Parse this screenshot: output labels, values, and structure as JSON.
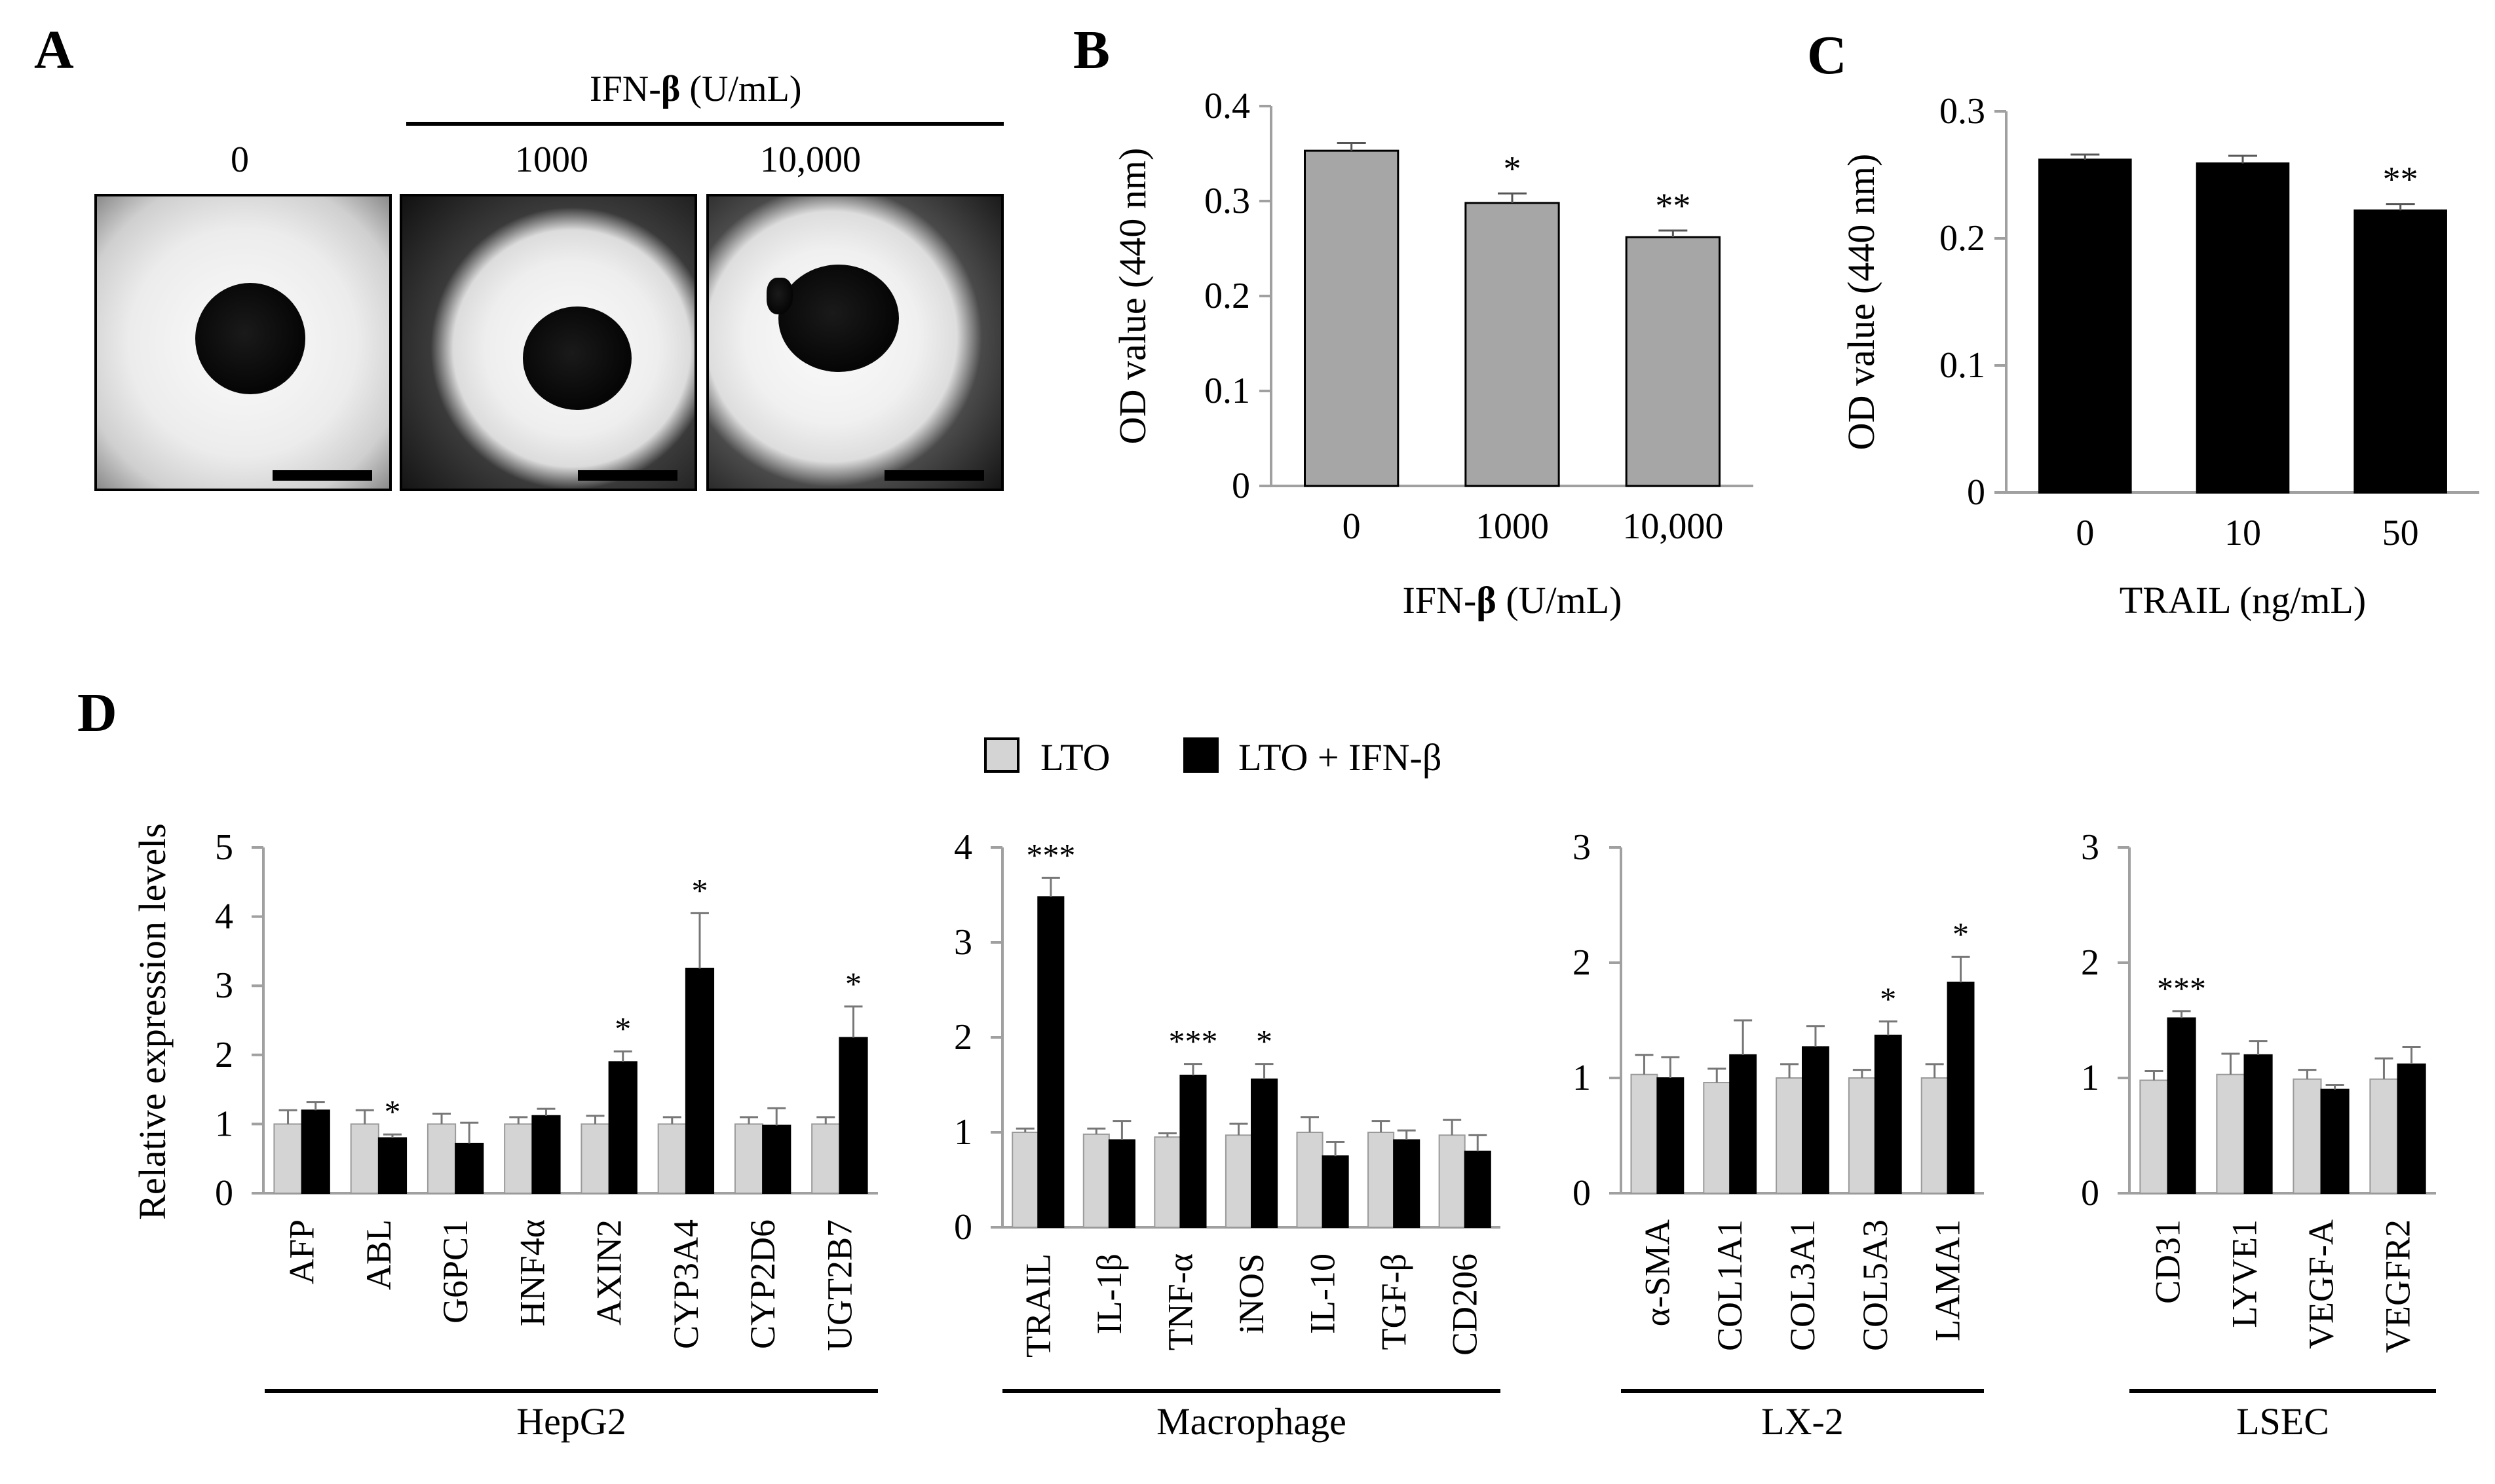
{
  "panel_letters": {
    "a": "A",
    "b": "B",
    "c": "C",
    "d": "D"
  },
  "panel_a": {
    "header": "IFN-",
    "header_beta": "β",
    "header_unit": " (U/mL)",
    "labels": [
      "0",
      "1000",
      "10,000"
    ]
  },
  "legend": [
    "LTO",
    "LTO + IFN-β"
  ],
  "colors": {
    "lto": "#d4d4d4",
    "ifn": "#000000",
    "panel_b_bar": "#a6a6a6",
    "panel_c_bar": "#000000",
    "axis": "#a0a0a0"
  },
  "chart_data": [
    {
      "id": "B",
      "type": "bar",
      "categories": [
        "0",
        "1000",
        "10,000"
      ],
      "values": [
        0.353,
        0.298,
        0.262
      ],
      "errors": [
        0.008,
        0.01,
        0.007
      ],
      "significance": [
        "",
        "*",
        "**"
      ],
      "ylabel": "OD value (440 nm)",
      "xlabel_main": "IFN-",
      "xlabel_beta": "β",
      "xlabel_unit": " (U/mL)",
      "ylim": [
        0,
        0.4
      ],
      "yticks": [
        "0",
        "0.1",
        "0.2",
        "0.3",
        "0.4"
      ]
    },
    {
      "id": "C",
      "type": "bar",
      "categories": [
        "0",
        "10",
        "50"
      ],
      "values": [
        0.262,
        0.259,
        0.222
      ],
      "errors": [
        0.004,
        0.006,
        0.005
      ],
      "significance": [
        "",
        "",
        "**"
      ],
      "ylabel": "OD value (440 nm)",
      "xlabel": "TRAIL (ng/mL)",
      "ylim": [
        0,
        0.3
      ],
      "yticks": [
        "0",
        "0.1",
        "0.2",
        "0.3"
      ]
    },
    {
      "id": "D-HepG2",
      "type": "bar",
      "group": "HepG2",
      "ylabel": "Relative expression levels",
      "ylim": [
        0,
        5
      ],
      "yticks": [
        "0",
        "1",
        "2",
        "3",
        "4",
        "5"
      ],
      "categories": [
        "AFP",
        "ABL",
        "G6PC1",
        "HNF4α",
        "AXIN2",
        "CYP3A4",
        "CYP2D6",
        "UGT2B7"
      ],
      "series": [
        {
          "name": "LTO",
          "values": [
            1.0,
            1.0,
            1.0,
            1.0,
            1.0,
            1.0,
            1.0,
            1.0
          ],
          "errors": [
            0.2,
            0.2,
            0.15,
            0.1,
            0.12,
            0.1,
            0.1,
            0.1
          ]
        },
        {
          "name": "LTO + IFN-β",
          "values": [
            1.2,
            0.8,
            0.72,
            1.12,
            1.9,
            3.25,
            0.98,
            2.25
          ],
          "errors": [
            0.12,
            0.05,
            0.3,
            0.1,
            0.15,
            0.8,
            0.25,
            0.45
          ]
        }
      ],
      "significance": [
        "",
        "*",
        "",
        "",
        "*",
        "*",
        "",
        "*"
      ]
    },
    {
      "id": "D-Macrophage",
      "type": "bar",
      "group": "Macrophage",
      "ylim": [
        0,
        4
      ],
      "yticks": [
        "0",
        "1",
        "2",
        "3",
        "4"
      ],
      "categories": [
        "TRAIL",
        "IL-1β",
        "TNF-α",
        "iNOS",
        "IL-10",
        "TGF-β",
        "CD206"
      ],
      "series": [
        {
          "name": "LTO",
          "values": [
            1.0,
            0.98,
            0.95,
            0.97,
            1.0,
            1.0,
            0.97
          ],
          "errors": [
            0.04,
            0.06,
            0.04,
            0.12,
            0.16,
            0.12,
            0.16
          ]
        },
        {
          "name": "LTO + IFN-β",
          "values": [
            3.48,
            0.92,
            1.6,
            1.56,
            0.75,
            0.92,
            0.8
          ],
          "errors": [
            0.2,
            0.2,
            0.12,
            0.16,
            0.15,
            0.1,
            0.17
          ]
        }
      ],
      "significance": [
        "***",
        "",
        "***",
        "*",
        "",
        "",
        ""
      ]
    },
    {
      "id": "D-LX-2",
      "type": "bar",
      "group": "LX-2",
      "ylim": [
        0,
        3
      ],
      "yticks": [
        "0",
        "1",
        "2",
        "3"
      ],
      "categories": [
        "α-SMA",
        "COL1A1",
        "COL3A1",
        "COL5A3",
        "LAMA1"
      ],
      "series": [
        {
          "name": "LTO",
          "values": [
            1.03,
            0.96,
            1.0,
            1.0,
            1.0
          ],
          "errors": [
            0.17,
            0.12,
            0.12,
            0.07,
            0.12
          ]
        },
        {
          "name": "LTO + IFN-β",
          "values": [
            1.0,
            1.2,
            1.27,
            1.37,
            1.83
          ],
          "errors": [
            0.18,
            0.3,
            0.18,
            0.12,
            0.22
          ]
        }
      ],
      "significance": [
        "",
        "",
        "",
        "*",
        "*"
      ]
    },
    {
      "id": "D-LSEC",
      "type": "bar",
      "group": "LSEC",
      "ylim": [
        0,
        3
      ],
      "yticks": [
        "0",
        "1",
        "2",
        "3"
      ],
      "categories": [
        "CD31",
        "LYVE1",
        "VEGF-A",
        "VEGFR2"
      ],
      "series": [
        {
          "name": "LTO",
          "values": [
            0.98,
            1.03,
            0.99,
            0.99
          ],
          "errors": [
            0.08,
            0.18,
            0.08,
            0.18
          ]
        },
        {
          "name": "LTO + IFN-β",
          "values": [
            1.52,
            1.2,
            0.9,
            1.12
          ],
          "errors": [
            0.06,
            0.12,
            0.04,
            0.15
          ]
        }
      ],
      "significance": [
        "***",
        "",
        "",
        ""
      ]
    }
  ]
}
